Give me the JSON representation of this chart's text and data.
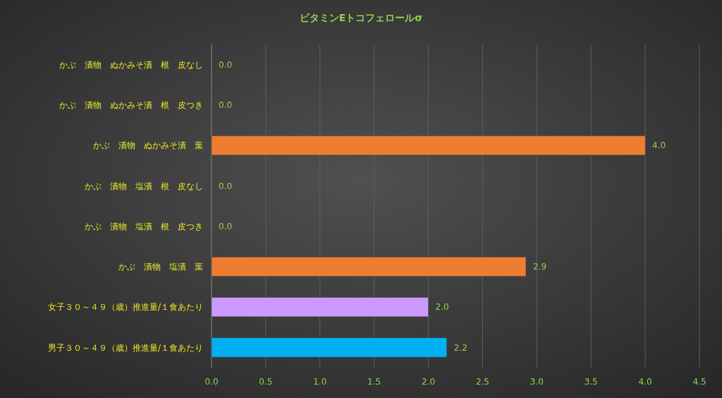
{
  "chart_data": {
    "type": "bar",
    "orientation": "horizontal",
    "title": "ビタミンEトコフェロールσ",
    "categories": [
      "かぶ　漬物　ぬかみそ漬　根　皮なし",
      "かぶ　漬物　ぬかみそ漬　根　皮つき",
      "かぶ　漬物　ぬかみそ漬　葉",
      "かぶ　漬物　塩漬　根　皮なし",
      "かぶ　漬物　塩漬　根　皮つき",
      "かぶ　漬物　塩漬　葉",
      "女子３０～４９（歳）推進量/１食あたり",
      "男子３０～４９（歳）推進量/１食あたり"
    ],
    "values": [
      0,
      0,
      4.0,
      0,
      0,
      2.9,
      2.0,
      2.17
    ],
    "value_labels": [
      "0.0",
      "0.0",
      "4.0",
      "0.0",
      "0.0",
      "2.9",
      "2.0",
      "2.2"
    ],
    "colors": [
      "#ed7d31",
      "#ed7d31",
      "#ed7d31",
      "#ed7d31",
      "#ed7d31",
      "#ed7d31",
      "#cc99ff",
      "#00b0f0"
    ],
    "xlim": [
      0,
      4.5
    ],
    "xticks": [
      {
        "value": 0,
        "label": "0.0"
      },
      {
        "value": 0.5,
        "label": "0.5"
      },
      {
        "value": 1,
        "label": "1.0"
      },
      {
        "value": 1.5,
        "label": "1.5"
      },
      {
        "value": 2,
        "label": "2.0"
      },
      {
        "value": 2.5,
        "label": "2.5"
      },
      {
        "value": 3,
        "label": "3.0"
      },
      {
        "value": 3.5,
        "label": "3.5"
      },
      {
        "value": 4,
        "label": "4.0"
      },
      {
        "value": 4.5,
        "label": "4.5"
      }
    ],
    "grid": "x"
  }
}
